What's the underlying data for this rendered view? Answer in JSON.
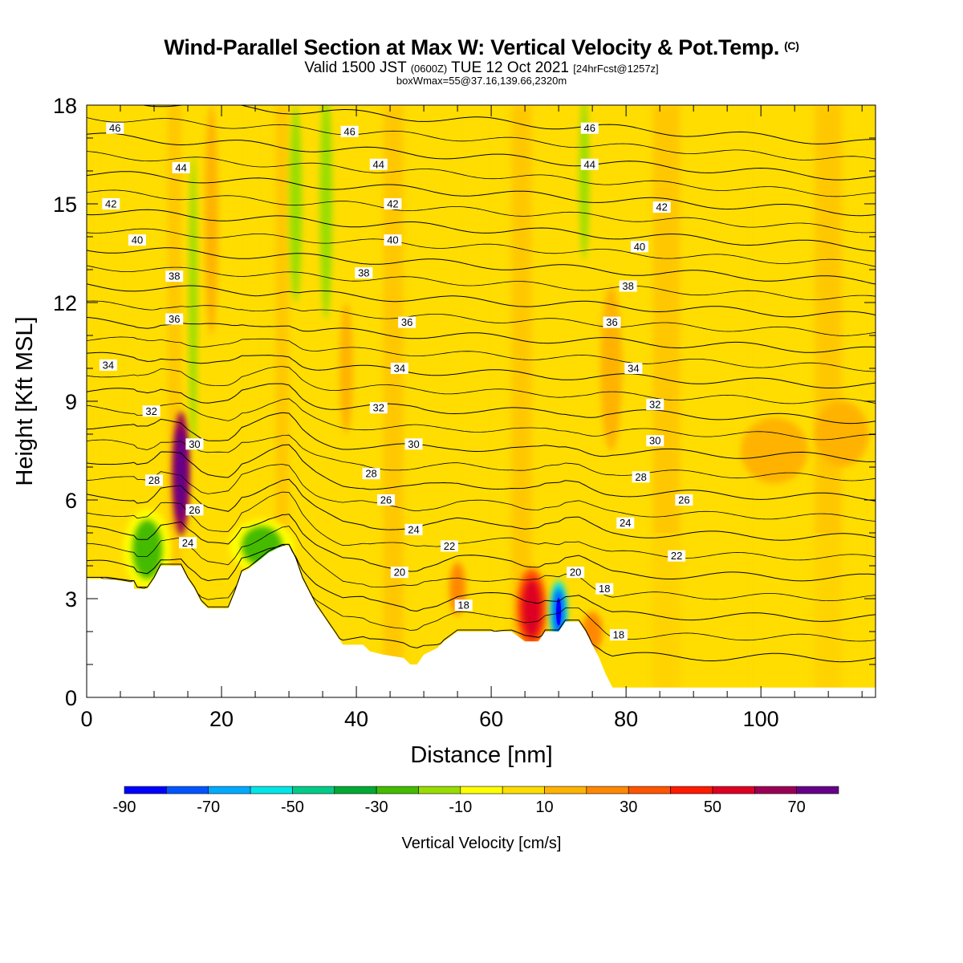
{
  "header": {
    "title_main": "Wind-Parallel Section at Max W: Vertical Velocity & Pot.Temp.",
    "title_copyright": "(C)",
    "valid_prefix": "Valid 1500 JST",
    "valid_zulu": "(0600Z)",
    "valid_date": "TUE 12 Oct 2021",
    "forecast": "[24hrFcst@1257z]",
    "box_info": "boxWmax=55@37.16,139.66,2320m"
  },
  "chart_data": {
    "type": "heatmap",
    "xlabel": "Distance [nm]",
    "ylabel": "Height [Kft MSL]",
    "xlim": [
      0,
      117
    ],
    "ylim": [
      0,
      18
    ],
    "x_ticks": [
      0,
      20,
      40,
      60,
      80,
      100
    ],
    "y_ticks": [
      0,
      3,
      6,
      9,
      12,
      15,
      18
    ],
    "colorbar": {
      "label": "Vertical Velocity [cm/s]",
      "bounds": [
        -90,
        -80,
        -70,
        -60,
        -50,
        -40,
        -30,
        -20,
        -10,
        0,
        10,
        20,
        30,
        40,
        50,
        60,
        70,
        80
      ],
      "tick_labels": [
        "-90",
        "-70",
        "-50",
        "-30",
        "-10",
        "10",
        "30",
        "50",
        "70"
      ],
      "colors": [
        "#0000ff",
        "#0055ff",
        "#00aaff",
        "#00e6e6",
        "#00cc88",
        "#00aa33",
        "#44bb00",
        "#99dd00",
        "#ffff00",
        "#ffdd00",
        "#ffb300",
        "#ff8800",
        "#ff5500",
        "#ff1a00",
        "#dd0022",
        "#990055",
        "#660088"
      ]
    },
    "terrain_kft": [
      [
        0,
        3.6
      ],
      [
        3,
        3.6
      ],
      [
        6.5,
        3.5
      ],
      [
        7,
        3.5
      ],
      [
        7,
        3.3
      ],
      [
        9,
        3.3
      ],
      [
        10,
        3.6
      ],
      [
        11,
        4.0
      ],
      [
        14,
        4.0
      ],
      [
        15,
        3.6
      ],
      [
        16,
        3.3
      ],
      [
        17,
        2.9
      ],
      [
        18,
        2.7
      ],
      [
        21,
        2.7
      ],
      [
        22,
        3.2
      ],
      [
        23,
        3.8
      ],
      [
        24,
        3.9
      ],
      [
        27,
        4.4
      ],
      [
        29,
        4.6
      ],
      [
        30,
        4.6
      ],
      [
        31,
        4.2
      ],
      [
        32,
        3.6
      ],
      [
        33,
        3.2
      ],
      [
        34,
        2.8
      ],
      [
        35,
        2.5
      ],
      [
        36,
        2.2
      ],
      [
        37,
        1.9
      ],
      [
        38,
        1.6
      ],
      [
        41,
        1.6
      ],
      [
        42,
        1.4
      ],
      [
        44,
        1.3
      ],
      [
        47,
        1.2
      ],
      [
        48,
        1.0
      ],
      [
        49,
        1.0
      ],
      [
        50,
        1.3
      ],
      [
        52,
        1.5
      ],
      [
        53,
        1.7
      ],
      [
        55,
        2.0
      ],
      [
        58,
        2.0
      ],
      [
        60,
        2.0
      ],
      [
        63,
        2.0
      ],
      [
        65,
        1.7
      ],
      [
        67,
        1.7
      ],
      [
        68,
        2.0
      ],
      [
        70,
        2.0
      ],
      [
        71,
        2.3
      ],
      [
        73,
        2.3
      ],
      [
        74,
        2.0
      ],
      [
        75,
        1.6
      ],
      [
        76,
        1.2
      ],
      [
        77,
        0.7
      ],
      [
        78,
        0.3
      ],
      [
        79,
        0.3
      ],
      [
        80,
        0.3
      ],
      [
        117,
        0.3
      ]
    ],
    "theta_contours": {
      "levels": [
        18,
        20,
        22,
        24,
        26,
        28,
        30,
        32,
        34,
        36,
        38,
        40,
        42,
        44,
        46
      ],
      "labels": [
        {
          "text": "46",
          "x": 4.2,
          "y": 17.3
        },
        {
          "text": "46",
          "x": 39,
          "y": 17.2
        },
        {
          "text": "46",
          "x": 74.6,
          "y": 17.3
        },
        {
          "text": "44",
          "x": 14,
          "y": 16.1
        },
        {
          "text": "44",
          "x": 43.3,
          "y": 16.2
        },
        {
          "text": "44",
          "x": 74.6,
          "y": 16.2
        },
        {
          "text": "42",
          "x": 3.6,
          "y": 15.0
        },
        {
          "text": "42",
          "x": 45.4,
          "y": 15.0
        },
        {
          "text": "42",
          "x": 85.3,
          "y": 14.9
        },
        {
          "text": "40",
          "x": 7.5,
          "y": 13.9
        },
        {
          "text": "40",
          "x": 45.4,
          "y": 13.9
        },
        {
          "text": "40",
          "x": 82,
          "y": 13.7
        },
        {
          "text": "38",
          "x": 13,
          "y": 12.8
        },
        {
          "text": "38",
          "x": 41.1,
          "y": 12.9
        },
        {
          "text": "38",
          "x": 80.3,
          "y": 12.5
        },
        {
          "text": "36",
          "x": 13,
          "y": 11.5
        },
        {
          "text": "36",
          "x": 47.5,
          "y": 11.4
        },
        {
          "text": "36",
          "x": 77.9,
          "y": 11.4
        },
        {
          "text": "34",
          "x": 3.2,
          "y": 10.1
        },
        {
          "text": "34",
          "x": 46.4,
          "y": 10.0
        },
        {
          "text": "34",
          "x": 81.1,
          "y": 10.0
        },
        {
          "text": "32",
          "x": 9.6,
          "y": 8.7
        },
        {
          "text": "32",
          "x": 43.3,
          "y": 8.8
        },
        {
          "text": "32",
          "x": 84.3,
          "y": 8.9
        },
        {
          "text": "30",
          "x": 16,
          "y": 7.7
        },
        {
          "text": "30",
          "x": 48.5,
          "y": 7.7
        },
        {
          "text": "30",
          "x": 84.3,
          "y": 7.8
        },
        {
          "text": "28",
          "x": 10,
          "y": 6.6
        },
        {
          "text": "28",
          "x": 42.2,
          "y": 6.8
        },
        {
          "text": "28",
          "x": 82.2,
          "y": 6.7
        },
        {
          "text": "26",
          "x": 16,
          "y": 5.7
        },
        {
          "text": "26",
          "x": 44.4,
          "y": 6.0
        },
        {
          "text": "26",
          "x": 88.6,
          "y": 6.0
        },
        {
          "text": "24",
          "x": 15,
          "y": 4.7
        },
        {
          "text": "24",
          "x": 48.5,
          "y": 5.1
        },
        {
          "text": "24",
          "x": 79.9,
          "y": 5.3
        },
        {
          "text": "22",
          "x": 53.8,
          "y": 4.6
        },
        {
          "text": "22",
          "x": 87.5,
          "y": 4.3
        },
        {
          "text": "20",
          "x": 46.4,
          "y": 3.8
        },
        {
          "text": "20",
          "x": 72.5,
          "y": 3.8
        },
        {
          "text": "18",
          "x": 55.9,
          "y": 2.8
        },
        {
          "text": "18",
          "x": 76.8,
          "y": 3.3
        },
        {
          "text": "18",
          "x": 78.9,
          "y": 1.9
        }
      ]
    },
    "vv_features": [
      {
        "value": 80,
        "x": 14,
        "y": 6.8,
        "rx": 0.8,
        "ry": 1.4
      },
      {
        "value": 55,
        "x": 66,
        "y": 2.7,
        "rx": 1.4,
        "ry": 0.9
      },
      {
        "value": -75,
        "x": 70,
        "y": 2.6,
        "rx": 0.8,
        "ry": 0.7
      },
      {
        "value": -25,
        "x": 9,
        "y": 4.5,
        "rx": 2.2,
        "ry": 0.9
      },
      {
        "value": -25,
        "x": 26,
        "y": 4.6,
        "rx": 3.0,
        "ry": 0.6
      },
      {
        "value": -15,
        "x": 15.8,
        "y": 12.0,
        "rx": 0.6,
        "ry": 4.5
      },
      {
        "value": -15,
        "x": 31,
        "y": 15.0,
        "rx": 0.9,
        "ry": 3.0
      },
      {
        "value": -15,
        "x": 35.5,
        "y": 15.0,
        "rx": 0.9,
        "ry": 3.5
      },
      {
        "value": -15,
        "x": 73.8,
        "y": 15.8,
        "rx": 0.7,
        "ry": 2.5
      },
      {
        "value": 15,
        "x": 18.5,
        "y": 14.5,
        "rx": 1.0,
        "ry": 3.5
      },
      {
        "value": 15,
        "x": 38.5,
        "y": 10.0,
        "rx": 1.0,
        "ry": 2.0
      },
      {
        "value": 15,
        "x": 77.8,
        "y": 10.0,
        "rx": 1.6,
        "ry": 2.5
      },
      {
        "value": 15,
        "x": 102,
        "y": 7.5,
        "rx": 5,
        "ry": 1.0
      },
      {
        "value": 15,
        "x": 112,
        "y": 8.0,
        "rx": 4,
        "ry": 1.0
      },
      {
        "value": 25,
        "x": 55,
        "y": 3.3,
        "rx": 1.2,
        "ry": 0.8
      },
      {
        "value": 25,
        "x": 75,
        "y": 2.0,
        "rx": 1.5,
        "ry": 0.6
      }
    ]
  }
}
